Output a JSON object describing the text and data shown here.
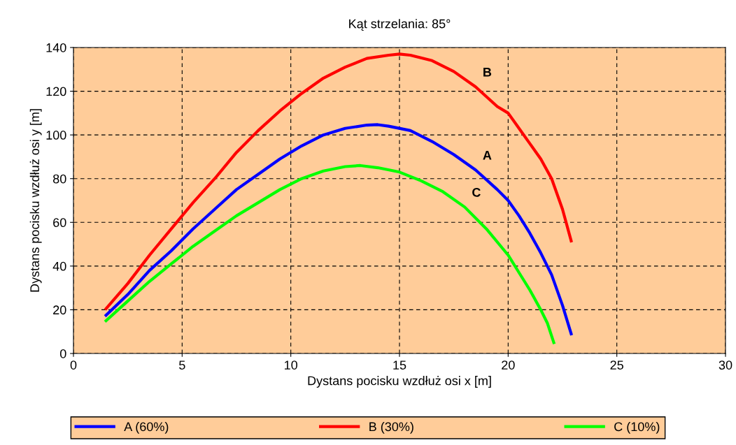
{
  "chart_data": {
    "type": "line",
    "title": "Kąt strzelania: 85°",
    "xlabel": "Dystans pocisku wzdłuż osi x [m]",
    "ylabel": "Dystans pocisku wzdłuż osi y [m]",
    "xlim": [
      0,
      30
    ],
    "xticks": [
      0,
      5,
      10,
      15,
      20,
      25,
      30
    ],
    "ylim": [
      0,
      140
    ],
    "yticks": [
      0,
      20,
      40,
      60,
      80,
      100,
      120,
      140
    ],
    "grid": true,
    "legend": "bottom",
    "marker": "none",
    "line_style": "solid",
    "series": [
      {
        "name": "A (60%)",
        "color": "#0000ff",
        "x": [
          1.5,
          2.5,
          3.5,
          4.5,
          5.5,
          6.5,
          7.5,
          8.5,
          9.5,
          10.5,
          11.5,
          12.5,
          13.5,
          14,
          14.5,
          15.5,
          16.5,
          17.5,
          18.5,
          19.5,
          20,
          20.5,
          21,
          21.5,
          22,
          22.5,
          22.9
        ],
        "values": [
          17.5,
          27,
          38,
          47,
          57,
          66,
          75,
          82,
          89,
          95,
          100,
          103,
          104.5,
          104.7,
          104,
          102,
          97,
          91,
          84,
          75,
          70,
          63,
          55,
          46,
          36,
          22,
          9
        ]
      },
      {
        "name": "B (30%)",
        "color": "#ff0000",
        "x": [
          1.5,
          2.5,
          3.5,
          4.5,
          5.5,
          6.5,
          7.5,
          8.5,
          9.5,
          10.5,
          11.5,
          12.5,
          13.5,
          14.5,
          15,
          15.5,
          16.5,
          17.5,
          18.5,
          19.5,
          20,
          20.5,
          21,
          21.5,
          22,
          22.5,
          22.9
        ],
        "values": [
          20.5,
          32,
          45,
          57,
          69,
          80,
          92,
          102,
          111,
          119,
          126,
          131,
          135,
          136.5,
          137,
          136.5,
          134,
          129,
          122,
          113,
          110,
          103,
          96,
          89,
          80,
          66,
          51.5
        ]
      },
      {
        "name": "C (10%)",
        "color": "#00ff00",
        "x": [
          1.5,
          2.5,
          3.5,
          4.5,
          5.5,
          6.5,
          7.5,
          8.5,
          9.5,
          10.5,
          11.5,
          12.5,
          13.2,
          14,
          15,
          16,
          17,
          18,
          19,
          20,
          20.5,
          21,
          21.5,
          21.8,
          22.1
        ],
        "values": [
          15,
          24,
          33,
          41,
          49,
          56,
          63,
          69,
          75,
          80,
          83.5,
          85.5,
          86,
          85,
          83,
          79,
          74,
          67,
          57,
          45,
          37,
          29,
          20,
          14,
          5
        ]
      }
    ],
    "annotations": [
      "A",
      "B",
      "C"
    ]
  }
}
